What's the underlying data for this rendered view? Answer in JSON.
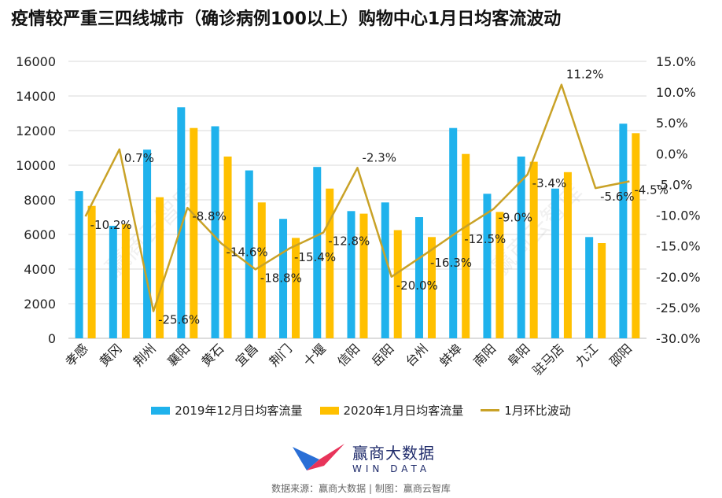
{
  "title": "疫情较严重三四线城市（确诊病例100以上）购物中心1月日均客流波动",
  "legend": {
    "s1": "2019年12月日均客流量",
    "s2": "2020年1月日均客流量",
    "s3": "1月环比波动"
  },
  "brand": {
    "name": "赢商大数据",
    "sub": "WIN DATA"
  },
  "source": "数据来源：赢商大数据 | 制图：赢商云智库",
  "watermark": "赢商云智库",
  "colors": {
    "s1": "#1FB2EC",
    "s2": "#FFC000",
    "s3": "#C9A227",
    "title": "#111111"
  },
  "chart_data": {
    "type": "bar",
    "categories": [
      "孝感",
      "黄冈",
      "荆州",
      "襄阳",
      "黄石",
      "宜昌",
      "荆门",
      "十堰",
      "信阳",
      "岳阳",
      "台州",
      "蚌埠",
      "南阳",
      "阜阳",
      "驻马店",
      "九江",
      "邵阳"
    ],
    "series": [
      {
        "name": "2019年12月日均客流量",
        "type": "bar",
        "axis": "left",
        "values": [
          8500,
          6500,
          10900,
          13350,
          12250,
          9700,
          6900,
          9900,
          7350,
          7850,
          7000,
          12150,
          8350,
          10500,
          8650,
          5850,
          12400
        ]
      },
      {
        "name": "2020年1月日均客流量",
        "type": "bar",
        "axis": "left",
        "values": [
          7650,
          6600,
          8150,
          12150,
          10500,
          7850,
          5800,
          8650,
          7200,
          6250,
          5850,
          10650,
          7300,
          10200,
          9600,
          5500,
          11850
        ]
      },
      {
        "name": "1月环比波动",
        "type": "line",
        "axis": "right",
        "values": [
          -10.2,
          0.7,
          -25.6,
          -8.8,
          -14.6,
          -18.8,
          -15.4,
          -12.8,
          -2.3,
          -20.0,
          -16.3,
          -12.5,
          -9.0,
          -3.4,
          11.2,
          -5.6,
          -4.5
        ],
        "labels": [
          "-10.2%",
          "0.7%",
          "-25.6%",
          "-8.8%",
          "-14.6%",
          "-18.8%",
          "-15.4%",
          "-12.8%",
          "-2.3%",
          "-20.0%",
          "-16.3%",
          "-12.5%",
          "-9.0%",
          "-3.4%",
          "11.2%",
          "-5.6%",
          "-4.5%"
        ]
      }
    ],
    "y_left": {
      "range": [
        0,
        16000
      ],
      "ticks": [
        "0",
        "2000",
        "4000",
        "6000",
        "8000",
        "10000",
        "12000",
        "14000",
        "16000"
      ]
    },
    "y_right": {
      "range": [
        -30,
        15
      ],
      "ticks": [
        "-30.0%",
        "-25.0%",
        "-20.0%",
        "-15.0%",
        "-10.0%",
        "-5.0%",
        "0.0%",
        "5.0%",
        "10.0%",
        "15.0%"
      ]
    },
    "grid": true,
    "legend_position": "bottom"
  }
}
